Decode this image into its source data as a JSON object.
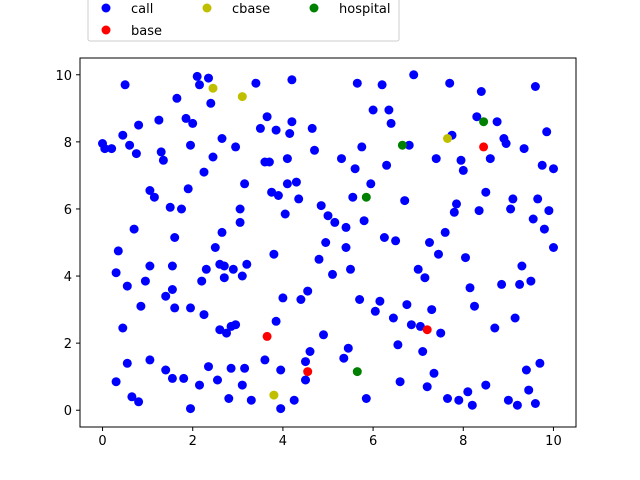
{
  "chart_data": {
    "type": "scatter",
    "xlim": [
      -0.5,
      10.5
    ],
    "ylim": [
      -0.5,
      10.5
    ],
    "x_ticks": [
      0,
      2,
      4,
      6,
      8,
      10
    ],
    "y_ticks": [
      0,
      2,
      4,
      6,
      8,
      10
    ],
    "grid": false,
    "legend_placement": "top, above plot, 3 columns",
    "series": [
      {
        "name": "call",
        "color": "#0000ff",
        "points": [
          [
            0.0,
            7.95
          ],
          [
            0.05,
            7.8
          ],
          [
            0.2,
            7.8
          ],
          [
            0.3,
            4.1
          ],
          [
            0.3,
            0.85
          ],
          [
            0.35,
            4.75
          ],
          [
            0.45,
            2.45
          ],
          [
            0.45,
            8.2
          ],
          [
            0.5,
            9.7
          ],
          [
            0.55,
            1.4
          ],
          [
            0.55,
            3.7
          ],
          [
            0.6,
            7.9
          ],
          [
            0.65,
            0.4
          ],
          [
            0.7,
            5.4
          ],
          [
            0.75,
            7.65
          ],
          [
            0.8,
            0.25
          ],
          [
            0.8,
            8.5
          ],
          [
            0.85,
            3.1
          ],
          [
            0.95,
            3.85
          ],
          [
            1.05,
            4.3
          ],
          [
            1.05,
            6.55
          ],
          [
            1.05,
            1.5
          ],
          [
            1.15,
            6.35
          ],
          [
            1.25,
            8.65
          ],
          [
            1.3,
            7.7
          ],
          [
            1.35,
            7.45
          ],
          [
            1.4,
            3.4
          ],
          [
            1.4,
            1.2
          ],
          [
            1.5,
            6.05
          ],
          [
            1.55,
            3.6
          ],
          [
            1.55,
            4.3
          ],
          [
            1.55,
            0.95
          ],
          [
            1.6,
            3.05
          ],
          [
            1.6,
            5.15
          ],
          [
            1.65,
            9.3
          ],
          [
            1.75,
            6.0
          ],
          [
            1.8,
            0.95
          ],
          [
            1.85,
            8.7
          ],
          [
            1.9,
            6.6
          ],
          [
            1.95,
            0.05
          ],
          [
            1.95,
            3.05
          ],
          [
            1.95,
            7.9
          ],
          [
            2.0,
            8.55
          ],
          [
            2.1,
            9.95
          ],
          [
            2.15,
            9.7
          ],
          [
            2.15,
            0.75
          ],
          [
            2.2,
            3.85
          ],
          [
            2.25,
            2.85
          ],
          [
            2.25,
            7.1
          ],
          [
            2.3,
            4.2
          ],
          [
            2.35,
            1.3
          ],
          [
            2.35,
            9.9
          ],
          [
            2.4,
            9.15
          ],
          [
            2.45,
            7.55
          ],
          [
            2.5,
            4.85
          ],
          [
            2.55,
            0.9
          ],
          [
            2.6,
            4.35
          ],
          [
            2.6,
            2.4
          ],
          [
            2.65,
            5.3
          ],
          [
            2.65,
            8.1
          ],
          [
            2.7,
            3.95
          ],
          [
            2.7,
            4.3
          ],
          [
            2.75,
            2.3
          ],
          [
            2.8,
            0.35
          ],
          [
            2.85,
            2.5
          ],
          [
            2.85,
            1.25
          ],
          [
            2.9,
            4.2
          ],
          [
            2.95,
            2.55
          ],
          [
            2.95,
            7.85
          ],
          [
            3.05,
            6.0
          ],
          [
            3.05,
            5.6
          ],
          [
            3.1,
            0.75
          ],
          [
            3.1,
            4.0
          ],
          [
            3.15,
            1.25
          ],
          [
            3.15,
            6.75
          ],
          [
            3.2,
            4.35
          ],
          [
            3.3,
            0.3
          ],
          [
            3.4,
            9.75
          ],
          [
            3.5,
            8.4
          ],
          [
            3.6,
            7.4
          ],
          [
            3.6,
            1.5
          ],
          [
            3.65,
            8.75
          ],
          [
            3.7,
            7.4
          ],
          [
            3.75,
            6.5
          ],
          [
            3.8,
            4.65
          ],
          [
            3.85,
            2.65
          ],
          [
            3.85,
            8.35
          ],
          [
            3.9,
            6.4
          ],
          [
            3.95,
            0.05
          ],
          [
            3.95,
            1.2
          ],
          [
            4.0,
            3.35
          ],
          [
            4.05,
            5.85
          ],
          [
            4.1,
            6.75
          ],
          [
            4.1,
            7.5
          ],
          [
            4.15,
            8.25
          ],
          [
            4.2,
            9.85
          ],
          [
            4.2,
            8.6
          ],
          [
            4.25,
            0.3
          ],
          [
            4.3,
            6.8
          ],
          [
            4.35,
            6.3
          ],
          [
            4.4,
            3.3
          ],
          [
            4.5,
            0.9
          ],
          [
            4.5,
            1.45
          ],
          [
            4.55,
            3.55
          ],
          [
            4.6,
            1.75
          ],
          [
            4.65,
            8.4
          ],
          [
            4.7,
            7.75
          ],
          [
            4.8,
            4.5
          ],
          [
            4.85,
            6.1
          ],
          [
            4.9,
            2.25
          ],
          [
            4.95,
            5.0
          ],
          [
            5.0,
            5.8
          ],
          [
            5.1,
            4.05
          ],
          [
            5.15,
            5.6
          ],
          [
            5.3,
            7.5
          ],
          [
            5.35,
            1.55
          ],
          [
            5.4,
            4.85
          ],
          [
            5.4,
            5.45
          ],
          [
            5.45,
            1.85
          ],
          [
            5.5,
            4.2
          ],
          [
            5.55,
            6.35
          ],
          [
            5.6,
            7.2
          ],
          [
            5.65,
            9.75
          ],
          [
            5.7,
            3.3
          ],
          [
            5.75,
            7.85
          ],
          [
            5.8,
            5.65
          ],
          [
            5.85,
            0.35
          ],
          [
            5.95,
            6.75
          ],
          [
            6.0,
            8.95
          ],
          [
            6.05,
            2.95
          ],
          [
            6.15,
            3.25
          ],
          [
            6.2,
            9.7
          ],
          [
            6.25,
            5.15
          ],
          [
            6.3,
            7.3
          ],
          [
            6.35,
            8.95
          ],
          [
            6.4,
            8.55
          ],
          [
            6.45,
            2.75
          ],
          [
            6.5,
            5.05
          ],
          [
            6.55,
            1.95
          ],
          [
            6.6,
            0.85
          ],
          [
            6.7,
            6.25
          ],
          [
            6.75,
            3.15
          ],
          [
            6.8,
            7.9
          ],
          [
            6.85,
            2.55
          ],
          [
            6.9,
            10.0
          ],
          [
            7.0,
            4.2
          ],
          [
            7.05,
            2.5
          ],
          [
            7.1,
            1.75
          ],
          [
            7.15,
            3.95
          ],
          [
            7.2,
            0.7
          ],
          [
            7.25,
            5.0
          ],
          [
            7.3,
            3.0
          ],
          [
            7.35,
            1.1
          ],
          [
            7.4,
            7.5
          ],
          [
            7.45,
            4.65
          ],
          [
            7.5,
            2.3
          ],
          [
            7.6,
            5.3
          ],
          [
            7.65,
            0.35
          ],
          [
            7.7,
            9.75
          ],
          [
            7.75,
            8.2
          ],
          [
            7.8,
            5.9
          ],
          [
            7.85,
            6.15
          ],
          [
            7.9,
            0.3
          ],
          [
            7.95,
            7.45
          ],
          [
            8.0,
            7.15
          ],
          [
            8.05,
            4.55
          ],
          [
            8.1,
            0.55
          ],
          [
            8.15,
            3.65
          ],
          [
            8.2,
            0.15
          ],
          [
            8.25,
            3.1
          ],
          [
            8.3,
            8.75
          ],
          [
            8.35,
            5.95
          ],
          [
            8.4,
            9.5
          ],
          [
            8.5,
            0.75
          ],
          [
            8.5,
            6.5
          ],
          [
            8.6,
            7.5
          ],
          [
            8.7,
            2.45
          ],
          [
            8.75,
            8.6
          ],
          [
            8.85,
            3.75
          ],
          [
            8.9,
            8.1
          ],
          [
            8.95,
            7.95
          ],
          [
            9.0,
            0.3
          ],
          [
            9.05,
            6.0
          ],
          [
            9.1,
            6.3
          ],
          [
            9.15,
            2.75
          ],
          [
            9.2,
            0.15
          ],
          [
            9.25,
            3.75
          ],
          [
            9.3,
            4.3
          ],
          [
            9.35,
            7.8
          ],
          [
            9.4,
            1.2
          ],
          [
            9.45,
            0.6
          ],
          [
            9.5,
            3.85
          ],
          [
            9.55,
            5.7
          ],
          [
            9.6,
            0.2
          ],
          [
            9.6,
            9.65
          ],
          [
            9.65,
            6.3
          ],
          [
            9.7,
            1.4
          ],
          [
            9.75,
            7.3
          ],
          [
            9.8,
            5.4
          ],
          [
            9.85,
            8.3
          ],
          [
            9.9,
            5.95
          ],
          [
            10.0,
            4.85
          ],
          [
            10.0,
            7.2
          ]
        ]
      },
      {
        "name": "base",
        "color": "#ff0000",
        "points": [
          [
            3.65,
            2.2
          ],
          [
            4.55,
            1.15
          ],
          [
            7.2,
            2.4
          ],
          [
            8.45,
            7.85
          ]
        ]
      },
      {
        "name": "cbase",
        "color": "#bfbf00",
        "points": [
          [
            2.45,
            9.6
          ],
          [
            3.1,
            9.35
          ],
          [
            3.8,
            0.45
          ],
          [
            7.65,
            8.1
          ]
        ]
      },
      {
        "name": "hospital",
        "color": "#008000",
        "points": [
          [
            5.65,
            1.15
          ],
          [
            5.85,
            6.35
          ],
          [
            6.65,
            7.9
          ],
          [
            8.45,
            8.6
          ]
        ]
      }
    ]
  }
}
